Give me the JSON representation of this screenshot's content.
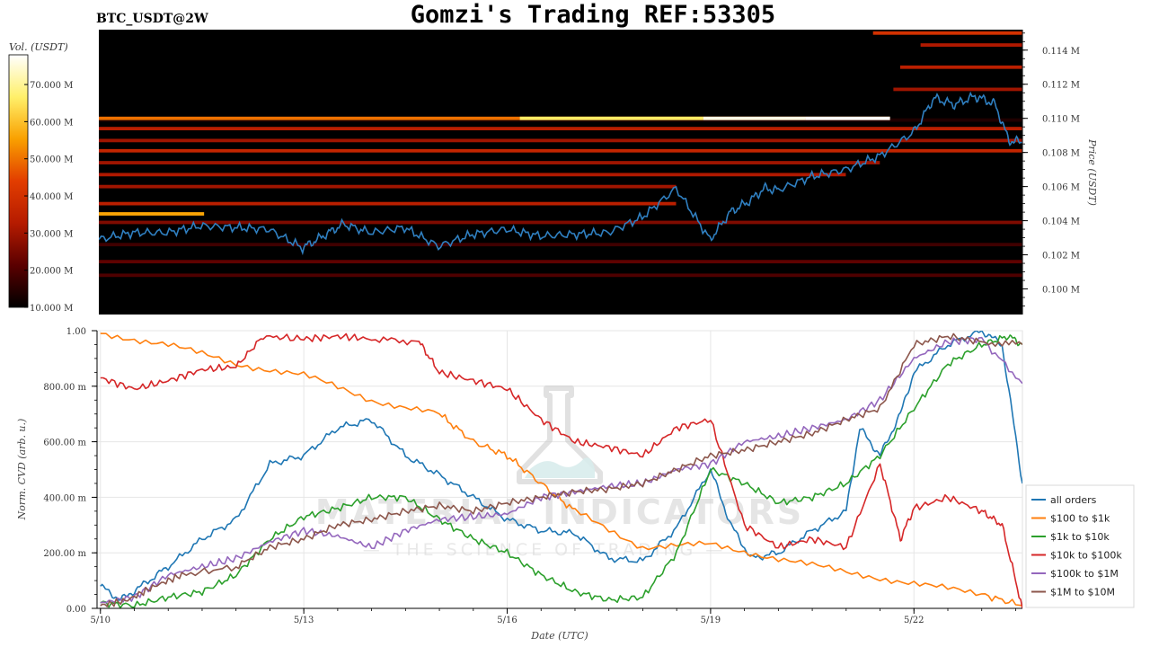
{
  "header": {
    "title": "Gomzi's Trading REF:53305",
    "pair_label": "BTC_USDT@2W"
  },
  "watermark": {
    "line1": "MATERIAL INDICATORS",
    "line2": "— THE SCIENCE OF TRADING —"
  },
  "colors": {
    "heatmap_bg": "#000000",
    "price_line": "#2f7fc0",
    "colorbar": [
      "#000000",
      "#5a0000",
      "#b51b00",
      "#e23d00",
      "#f9a000",
      "#fff06a",
      "#ffffff"
    ]
  },
  "chart_data": [
    {
      "type": "heatmap",
      "title": "BTC_USDT@2W",
      "colorbar_label": "Vol. (USDT)",
      "colorbar_ticks": [
        "10.000 M",
        "20.000 M",
        "30.000 M",
        "40.000 M",
        "50.000 M",
        "60.000 M",
        "70.000 M"
      ],
      "colorbar_range": [
        10,
        78
      ],
      "ylabel": "Price (USDT)",
      "yticks": [
        "0.100 M",
        "0.102 M",
        "0.104 M",
        "0.106 M",
        "0.108 M",
        "0.110 M",
        "0.112 M",
        "0.114 M"
      ],
      "ylim": [
        0.0985,
        0.1152
      ],
      "xlim": [
        0,
        13.6
      ],
      "price_series": {
        "x": [
          0,
          0.5,
          1,
          1.5,
          2,
          2.5,
          3,
          3.3,
          3.6,
          4,
          4.5,
          5,
          5.5,
          6,
          6.5,
          7,
          7.5,
          8,
          8.5,
          9,
          9.3,
          9.6,
          9.8,
          10,
          10.5,
          11,
          11.5,
          12,
          12.3,
          12.6,
          12.9,
          13.1,
          13.2,
          13.4,
          13.6
        ],
        "y": [
          0.1029,
          0.1033,
          0.1033,
          0.1037,
          0.1036,
          0.1035,
          0.1024,
          0.1031,
          0.1038,
          0.1033,
          0.1036,
          0.1025,
          0.1032,
          0.1035,
          0.1031,
          0.1032,
          0.1033,
          0.1042,
          0.1059,
          0.1029,
          0.1045,
          0.1052,
          0.1059,
          0.1058,
          0.1066,
          0.107,
          0.1078,
          0.1092,
          0.1112,
          0.1108,
          0.1113,
          0.111,
          0.1108,
          0.1087,
          0.1086
        ]
      },
      "bands": [
        {
          "price": 0.1099,
          "from": 0,
          "to": 13.6,
          "level": 14
        },
        {
          "price": 0.1008,
          "from": 0,
          "to": 13.6,
          "level": 20
        },
        {
          "price": 0.1016,
          "from": 0,
          "to": 13.6,
          "level": 22
        },
        {
          "price": 0.1026,
          "from": 0,
          "to": 13.6,
          "level": 18
        },
        {
          "price": 0.1039,
          "from": 0,
          "to": 13.6,
          "level": 26
        },
        {
          "price": 0.105,
          "from": 0,
          "to": 8.5,
          "level": 34
        },
        {
          "price": 0.106,
          "from": 0,
          "to": 8.5,
          "level": 30
        },
        {
          "price": 0.1067,
          "from": 0,
          "to": 11.0,
          "level": 32
        },
        {
          "price": 0.1074,
          "from": 0,
          "to": 11.5,
          "level": 30
        },
        {
          "price": 0.1081,
          "from": 0,
          "to": 13.6,
          "level": 36
        },
        {
          "price": 0.1087,
          "from": 0,
          "to": 13.6,
          "level": 30
        },
        {
          "price": 0.1094,
          "from": 0,
          "to": 13.6,
          "level": 34
        },
        {
          "price": 0.11,
          "from": 0,
          "to": 11.65,
          "level": 50
        },
        {
          "price": 0.1117,
          "from": 11.7,
          "to": 13.6,
          "level": 30
        },
        {
          "price": 0.113,
          "from": 11.8,
          "to": 13.6,
          "level": 34
        },
        {
          "price": 0.1143,
          "from": 12.1,
          "to": 13.6,
          "level": 32
        },
        {
          "price": 0.115,
          "from": 11.4,
          "to": 13.6,
          "level": 40
        },
        {
          "price": 0.1044,
          "from": 0,
          "to": 1.55,
          "level": 56
        },
        {
          "price": 0.11,
          "from": 6.2,
          "to": 8.9,
          "level": 66
        },
        {
          "price": 0.11,
          "from": 8.9,
          "to": 10.4,
          "level": 76
        },
        {
          "price": 0.11,
          "from": 10.4,
          "to": 11.65,
          "level": 80
        }
      ]
    },
    {
      "type": "line",
      "xlabel": "Date (UTC)",
      "ylabel": "Norm. CVD (arb. u.)",
      "x_tick_labels": [
        "5/10",
        "5/13",
        "5/16",
        "5/19",
        "5/22"
      ],
      "x_tick_positions": [
        0,
        3,
        6,
        9,
        12
      ],
      "xlim": [
        -0.05,
        13.6
      ],
      "y_tick_labels": [
        "0.00",
        "200.00 m",
        "400.00 m",
        "600.00 m",
        "800.00 m",
        "1.00"
      ],
      "y_tick_values": [
        0,
        0.2,
        0.4,
        0.6,
        0.8,
        1.0
      ],
      "ylim": [
        0,
        1
      ],
      "grid": true,
      "legend_position": "right",
      "series": [
        {
          "name": "all orders",
          "color": "#1f77b4",
          "x": [
            0,
            0.3,
            0.6,
            1,
            1.5,
            2,
            2.5,
            3,
            3.5,
            4,
            4.5,
            5,
            5.5,
            6,
            6.5,
            7,
            7.5,
            8,
            8.5,
            9,
            9.3,
            9.6,
            10,
            10.5,
            11,
            11.2,
            11.5,
            11.8,
            12,
            12.5,
            13,
            13.3,
            13.6
          ],
          "y": [
            0.08,
            0.03,
            0.08,
            0.15,
            0.25,
            0.32,
            0.52,
            0.55,
            0.65,
            0.68,
            0.55,
            0.48,
            0.4,
            0.32,
            0.28,
            0.27,
            0.18,
            0.17,
            0.29,
            0.5,
            0.3,
            0.18,
            0.2,
            0.28,
            0.35,
            0.65,
            0.55,
            0.7,
            0.85,
            0.95,
            1.0,
            0.95,
            0.45
          ]
        },
        {
          "name": "$100 to $1k",
          "color": "#ff7f0e",
          "x": [
            0,
            1,
            2,
            3,
            4,
            5,
            5.5,
            6,
            6.5,
            7,
            8,
            9,
            10,
            11,
            12,
            13,
            13.6
          ],
          "y": [
            0.99,
            0.95,
            0.88,
            0.84,
            0.75,
            0.7,
            0.6,
            0.55,
            0.45,
            0.35,
            0.22,
            0.23,
            0.18,
            0.13,
            0.09,
            0.05,
            0.01
          ]
        },
        {
          "name": "$1k to $10k",
          "color": "#2ca02c",
          "x": [
            0,
            0.5,
            1,
            1.5,
            2,
            2.5,
            3,
            3.5,
            4,
            4.5,
            5,
            5.5,
            6,
            6.5,
            7,
            7.5,
            8,
            8.5,
            9,
            9.5,
            10,
            10.5,
            11,
            11.5,
            12,
            12.5,
            13,
            13.4,
            13.6
          ],
          "y": [
            0.02,
            0.01,
            0.04,
            0.06,
            0.12,
            0.25,
            0.33,
            0.36,
            0.4,
            0.4,
            0.32,
            0.25,
            0.2,
            0.12,
            0.06,
            0.03,
            0.04,
            0.2,
            0.5,
            0.45,
            0.38,
            0.4,
            0.45,
            0.55,
            0.72,
            0.88,
            0.95,
            0.98,
            0.95
          ]
        },
        {
          "name": "$10k to $100k",
          "color": "#d62728",
          "x": [
            0,
            0.5,
            1,
            1.5,
            2,
            2.4,
            3,
            3.5,
            4,
            4.7,
            5,
            5.5,
            6,
            6.5,
            7,
            7.5,
            8,
            8.5,
            9,
            9.5,
            10,
            10.5,
            11,
            11.5,
            11.8,
            12,
            12.5,
            13,
            13.3,
            13.6
          ],
          "y": [
            0.83,
            0.79,
            0.82,
            0.86,
            0.87,
            0.98,
            0.97,
            0.98,
            0.97,
            0.96,
            0.85,
            0.82,
            0.79,
            0.68,
            0.6,
            0.58,
            0.55,
            0.65,
            0.68,
            0.3,
            0.22,
            0.25,
            0.22,
            0.52,
            0.25,
            0.36,
            0.4,
            0.35,
            0.3,
            0.0
          ]
        },
        {
          "name": "$100k to $1M",
          "color": "#9467bd",
          "x": [
            0,
            0.5,
            1,
            1.5,
            2,
            2.5,
            3,
            3.5,
            4,
            4.5,
            5,
            5.5,
            6,
            6.5,
            7,
            7.5,
            8,
            8.5,
            9,
            9.5,
            10,
            10.5,
            11,
            11.5,
            12,
            12.5,
            13,
            13.6
          ],
          "y": [
            0.02,
            0.04,
            0.12,
            0.15,
            0.18,
            0.24,
            0.28,
            0.26,
            0.22,
            0.28,
            0.32,
            0.33,
            0.34,
            0.4,
            0.42,
            0.44,
            0.45,
            0.5,
            0.52,
            0.6,
            0.62,
            0.65,
            0.68,
            0.75,
            0.9,
            0.96,
            0.97,
            0.81
          ]
        },
        {
          "name": "$1M to $10M",
          "color": "#8c564b",
          "x": [
            0,
            0.4,
            0.8,
            1.2,
            2,
            2.5,
            3,
            3.5,
            4,
            4.5,
            5,
            5.5,
            6,
            6.5,
            7,
            7.5,
            8,
            8.5,
            9,
            9.5,
            10,
            10.5,
            11,
            11.5,
            12,
            12.5,
            13,
            13.6
          ],
          "y": [
            0.01,
            0.03,
            0.08,
            0.12,
            0.15,
            0.22,
            0.25,
            0.3,
            0.32,
            0.35,
            0.37,
            0.35,
            0.38,
            0.4,
            0.42,
            0.43,
            0.45,
            0.5,
            0.55,
            0.57,
            0.6,
            0.63,
            0.68,
            0.72,
            0.95,
            0.98,
            0.96,
            0.95
          ]
        }
      ]
    }
  ]
}
